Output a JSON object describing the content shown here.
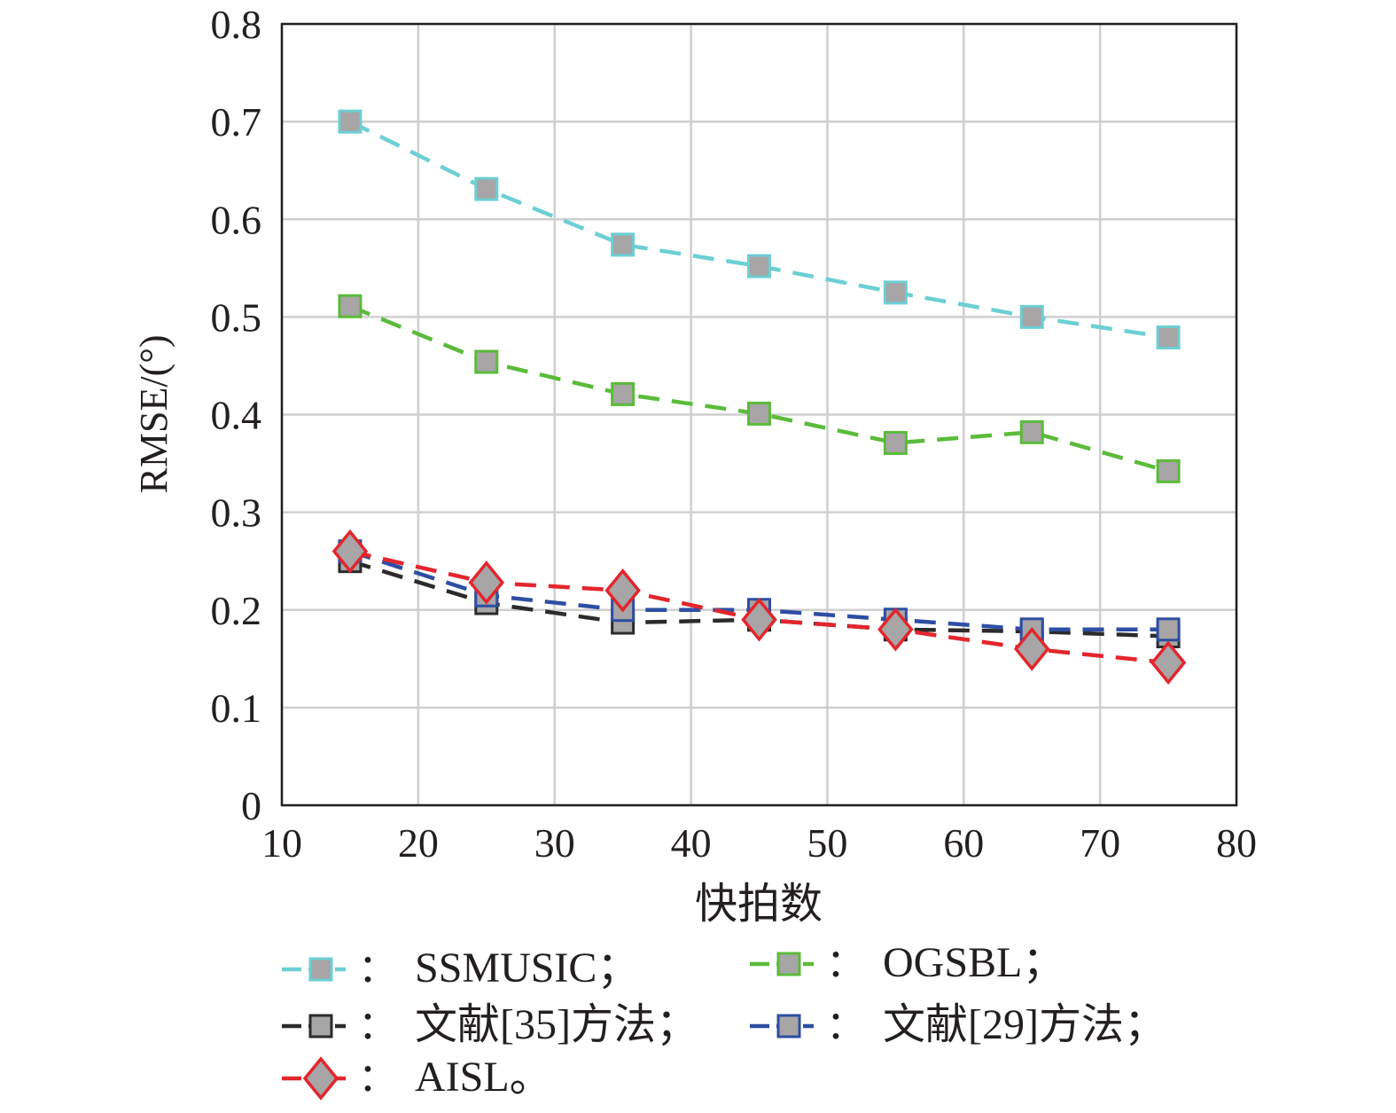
{
  "chart_data": {
    "type": "line",
    "xlabel": "快拍数",
    "ylabel": "RMSE/(°)",
    "xlim": [
      10,
      80
    ],
    "ylim": [
      0,
      0.8
    ],
    "xticks": [
      "10",
      "20",
      "30",
      "40",
      "50",
      "60",
      "70",
      "80"
    ],
    "yticks": [
      "0",
      "0.1",
      "0.2",
      "0.3",
      "0.4",
      "0.5",
      "0.6",
      "0.7",
      "0.8"
    ],
    "grid": true,
    "legend_position": "bottom",
    "x": [
      15,
      25,
      35,
      45,
      55,
      65,
      75
    ],
    "series": [
      {
        "name": "SSMUSIC；",
        "color": "#6ccfd3",
        "marker": "square",
        "values": [
          0.7,
          0.631,
          0.574,
          0.552,
          0.525,
          0.5,
          0.479
        ]
      },
      {
        "name": "OGSBL；",
        "color": "#5bbb3a",
        "marker": "square",
        "values": [
          0.511,
          0.454,
          0.421,
          0.401,
          0.371,
          0.382,
          0.342
        ]
      },
      {
        "name": "文献[35]方法；",
        "color": "#2b2b2b",
        "marker": "square",
        "values": [
          0.25,
          0.207,
          0.187,
          0.19,
          0.18,
          0.178,
          0.173
        ]
      },
      {
        "name": "文献[29]方法；",
        "color": "#2e4ea3",
        "marker": "square",
        "values": [
          0.26,
          0.215,
          0.2,
          0.2,
          0.19,
          0.18,
          0.18
        ]
      },
      {
        "name": "AISL。",
        "color": "#e3262c",
        "marker": "diamond",
        "values": [
          0.26,
          0.228,
          0.22,
          0.19,
          0.18,
          0.16,
          0.146
        ]
      }
    ],
    "legend_separator": "："
  }
}
